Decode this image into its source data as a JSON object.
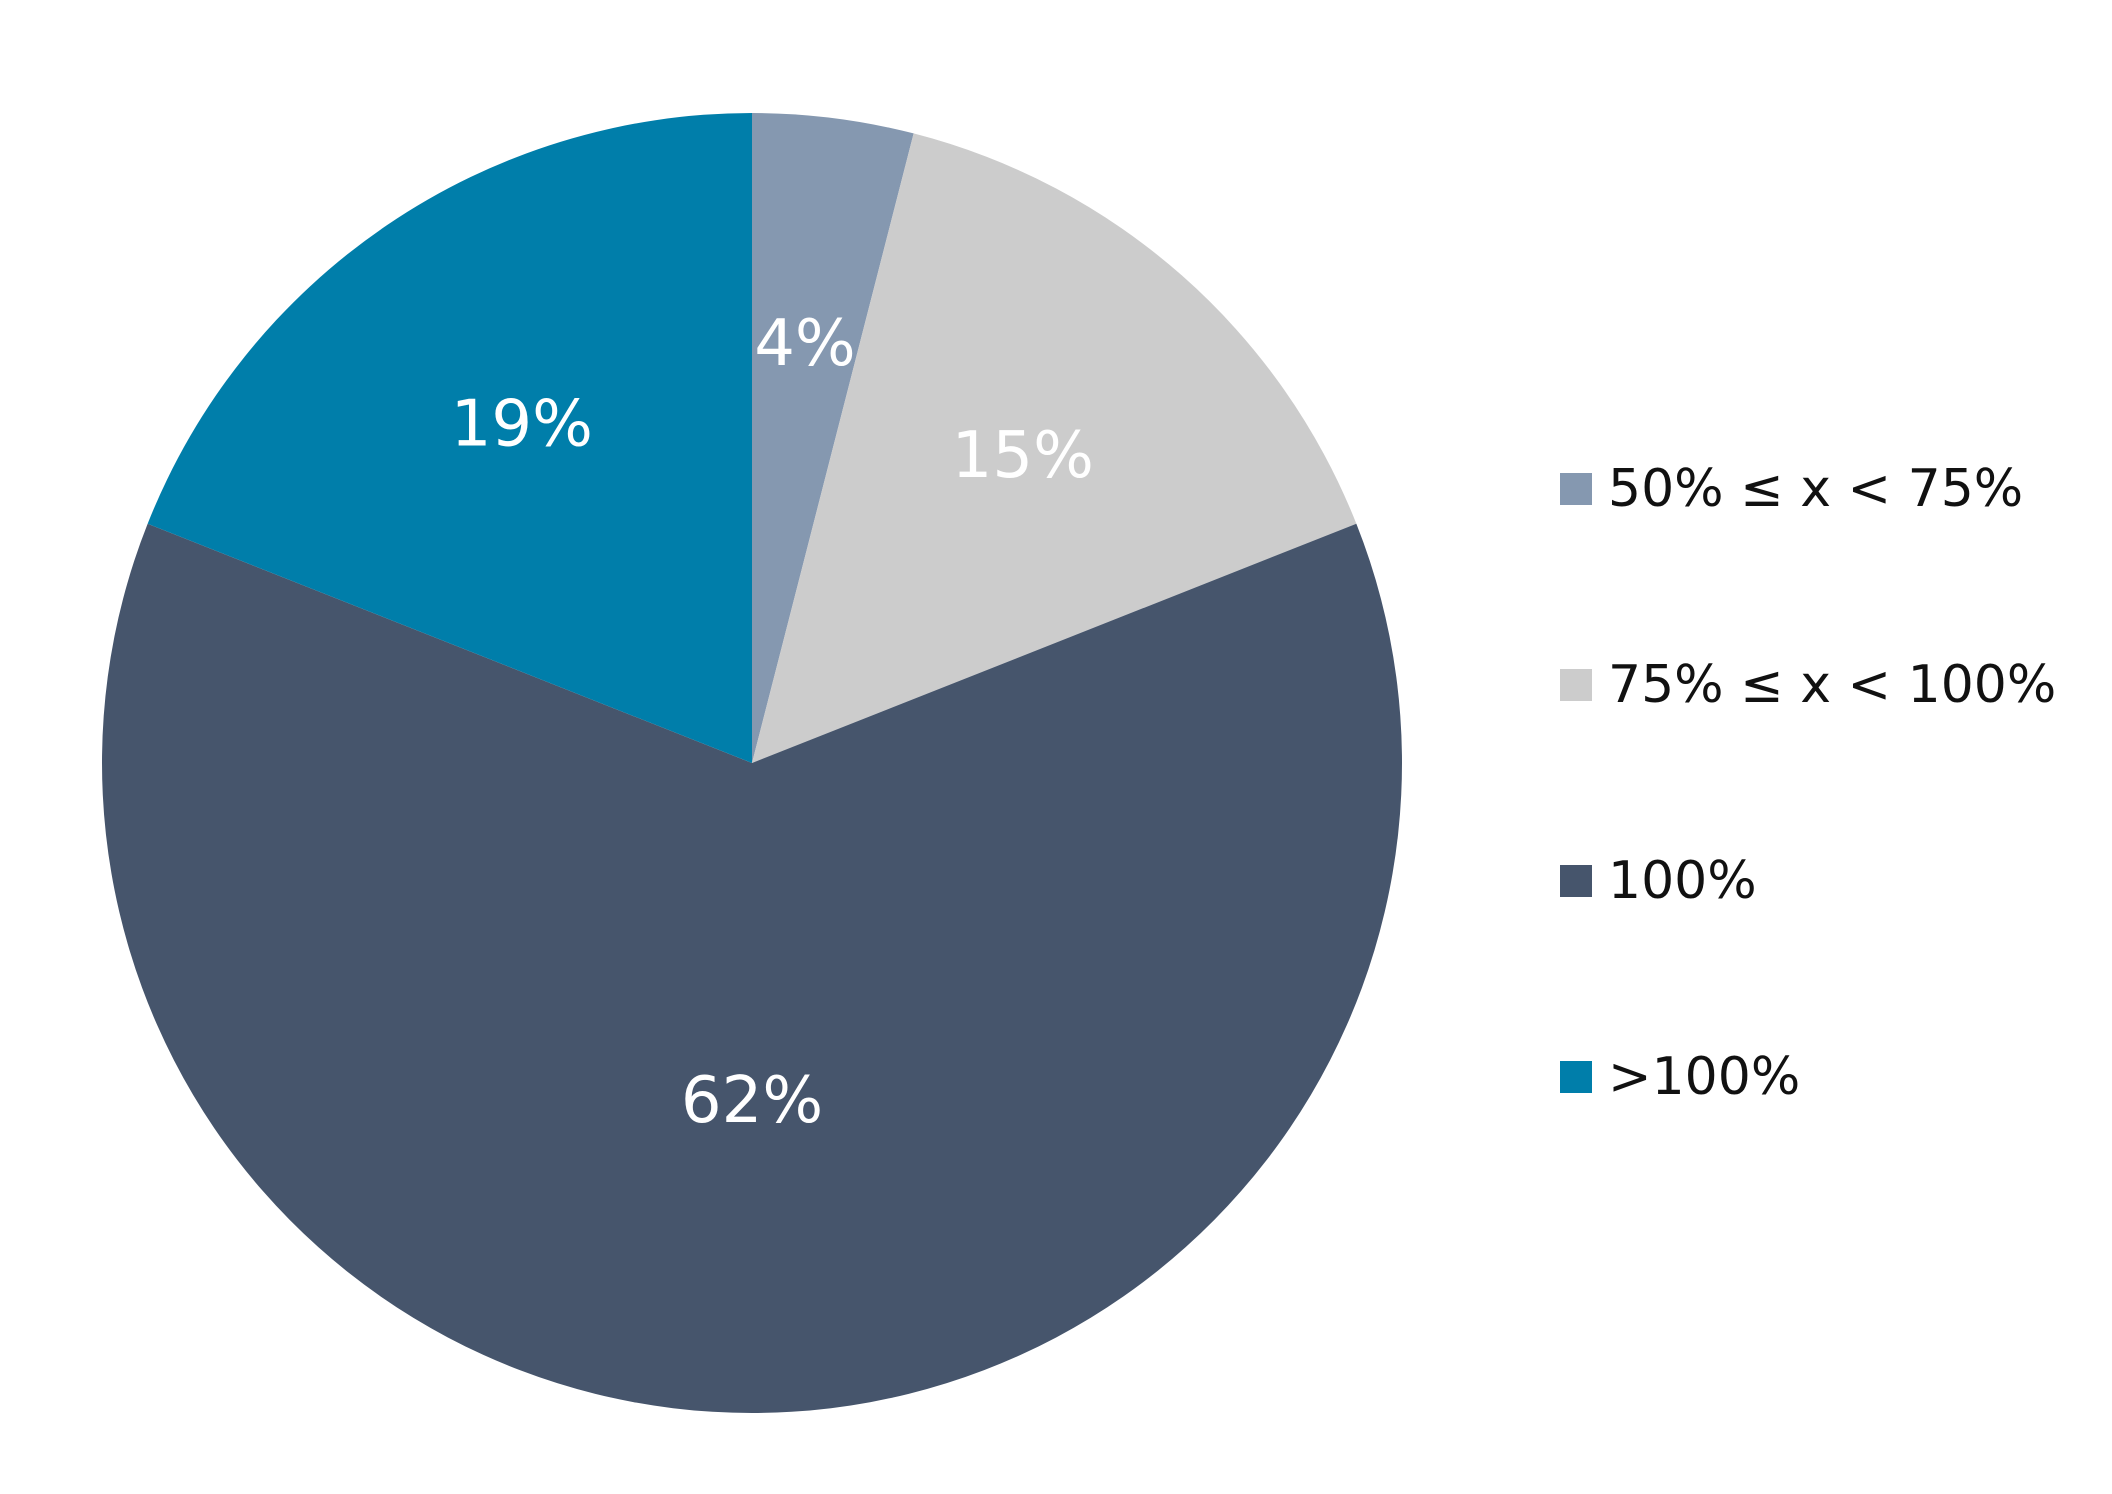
{
  "chart_data": {
    "type": "pie",
    "slices": [
      {
        "label": "50% ≤ x < 75%",
        "value": 4,
        "value_label": "4%",
        "color": "#8598b0"
      },
      {
        "label": "75% ≤ x < 100%",
        "value": 15,
        "value_label": "15%",
        "color": "#cccccc"
      },
      {
        "label": "100%",
        "value": 62,
        "value_label": "62%",
        "color": "#46556c"
      },
      {
        "label": ">100%",
        "value": 19,
        "value_label": "19%",
        "color": "#007eaa"
      }
    ],
    "start_angle": "12 o'clock",
    "direction": "clockwise",
    "legend_position": "right"
  }
}
